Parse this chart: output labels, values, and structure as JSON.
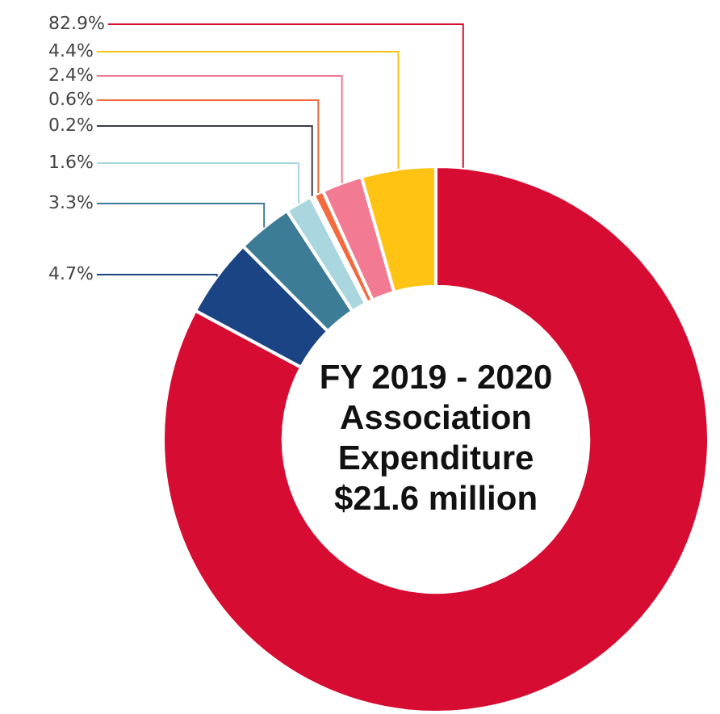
{
  "chart_data": {
    "type": "donut",
    "title": "FY 2019 - 2020 Association Expenditure $21.6 million",
    "categories": [
      null,
      null,
      null,
      null,
      null,
      null,
      null,
      null
    ],
    "values": [
      82.9,
      4.7,
      3.3,
      1.6,
      0.2,
      0.6,
      2.4,
      4.4
    ],
    "colors": [
      "#d70c32",
      "#1b4484",
      "#3c7c96",
      "#a9d6df",
      "#3b3c4a",
      "#f26a3d",
      "#f27a92",
      "#ffc314"
    ],
    "value_labels": [
      "82.9%",
      "4.7%",
      "3.3%",
      "1.6%",
      "0.2%",
      "0.6%",
      "2.4%",
      "4.4%"
    ],
    "legend": false
  }
}
